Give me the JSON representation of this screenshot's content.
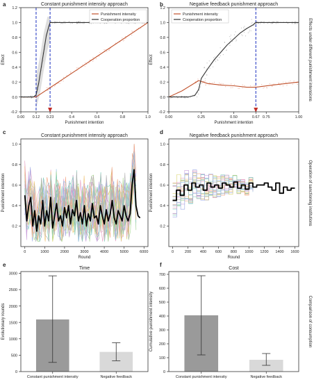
{
  "row_labels": [
    "Effects under different punishment intensions",
    "Operation of sanctioning institutions",
    "Comparison of consumption"
  ],
  "chart_data": [
    {
      "panel": "a",
      "type": "line",
      "title": "Constant punishment intensity approach",
      "xlabel": "Punishment intention",
      "ylabel": "Effect",
      "xlim": [
        0,
        1
      ],
      "ylim": [
        -0.2,
        1.2
      ],
      "xticks": [
        0.0,
        0.12,
        0.23,
        0.4,
        0.6,
        0.8,
        1.0
      ],
      "xtick_labels": [
        "0.00",
        "0.12",
        "0.23",
        "0.4",
        "0.6",
        "0.8",
        "1.0"
      ],
      "yticks": [
        -0.2,
        0.0,
        0.2,
        0.4,
        0.6,
        0.8,
        1.0,
        1.2
      ],
      "ytick_labels": [
        "-0.2",
        "0.0",
        "0.2",
        "0.4",
        "0.6",
        "0.8",
        "1.0",
        "1.2"
      ],
      "legend": "top-right",
      "vlines": [
        0.12,
        0.23
      ],
      "arrow_at": 0.23,
      "series": [
        {
          "name": "Punishment intensity",
          "color": "#c0502a",
          "x": [
            0.0,
            0.12,
            1.0
          ],
          "y": [
            0.0,
            0.0,
            1.0
          ]
        },
        {
          "name": "Cooperation proportion",
          "color": "#333333",
          "x": [
            0.0,
            0.1,
            0.12,
            0.14,
            0.17,
            0.2,
            0.22,
            0.23,
            0.25,
            1.0
          ],
          "y": [
            0.0,
            0.0,
            0.03,
            0.18,
            0.5,
            0.82,
            0.95,
            1.0,
            1.0,
            1.0
          ]
        }
      ]
    },
    {
      "panel": "b",
      "type": "line",
      "title": "Negative feedback punishment approach",
      "xlabel": "Punishment intention",
      "ylabel": "Effect",
      "xlim": [
        0,
        1
      ],
      "ylim": [
        -0.2,
        1.2
      ],
      "xticks": [
        0.0,
        0.25,
        0.5,
        0.67,
        0.75,
        1.0
      ],
      "xtick_labels": [
        "0.00",
        "0.25",
        "0.50",
        "0.67",
        "0.75",
        "1.00"
      ],
      "yticks": [
        -0.2,
        0.0,
        0.2,
        0.4,
        0.6,
        0.8,
        1.0,
        1.2
      ],
      "ytick_labels": [
        "-0.2",
        "0.0",
        "0.2",
        "0.4",
        "0.6",
        "0.8",
        "1.0",
        "1.2"
      ],
      "legend": "top-left",
      "vlines": [
        0.67
      ],
      "arrow_at": 0.67,
      "series": [
        {
          "name": "Punishment intensity",
          "color": "#c0502a",
          "x": [
            0.0,
            0.1,
            0.23,
            0.3,
            0.4,
            0.5,
            0.6,
            0.67,
            0.8,
            0.9,
            1.0
          ],
          "y": [
            0.0,
            0.08,
            0.22,
            0.18,
            0.16,
            0.15,
            0.13,
            0.13,
            0.16,
            0.18,
            0.2
          ]
        },
        {
          "name": "Cooperation proportion",
          "color": "#333333",
          "x": [
            0.0,
            0.15,
            0.2,
            0.23,
            0.25,
            0.3,
            0.35,
            0.4,
            0.45,
            0.5,
            0.55,
            0.6,
            0.65,
            0.67,
            0.7,
            0.8,
            0.9,
            1.0
          ],
          "y": [
            0.0,
            0.0,
            0.02,
            0.1,
            0.25,
            0.38,
            0.5,
            0.6,
            0.7,
            0.78,
            0.86,
            0.92,
            0.97,
            1.0,
            1.0,
            1.0,
            1.0,
            1.0
          ]
        }
      ]
    },
    {
      "panel": "c",
      "type": "line",
      "title": "Constant punishment intensity approach",
      "xlabel": "Round",
      "ylabel": "Punishment intention",
      "xlim": [
        -200,
        6200
      ],
      "ylim": [
        0,
        1.05
      ],
      "xticks": [
        0,
        1000,
        2000,
        3000,
        4000,
        5000,
        6000
      ],
      "xtick_labels": [
        "0",
        "1000",
        "2000",
        "3000",
        "4000",
        "5000",
        "6000"
      ],
      "yticks": [
        0.2,
        0.4,
        0.6,
        0.8,
        1.0
      ],
      "ytick_labels": [
        "0.2",
        "0.4",
        "0.6",
        "0.8",
        "1.0"
      ],
      "series": [
        {
          "color": "#000000",
          "x": [
            0,
            100,
            200,
            300,
            400,
            500,
            600,
            700,
            800,
            900,
            1000,
            1100,
            1200,
            1300,
            1400,
            1500,
            1600,
            1700,
            1800,
            1900,
            2000,
            2100,
            2200,
            2300,
            2400,
            2500,
            2600,
            2700,
            2800,
            2900,
            3000,
            3100,
            3200,
            3300,
            3400,
            3500,
            3600,
            3700,
            3800,
            3900,
            4000,
            4100,
            4200,
            4300,
            4400,
            4500,
            4600,
            4700,
            4800,
            4900,
            5000,
            5100,
            5200,
            5300,
            5400,
            5500,
            5600,
            5700,
            5800
          ],
          "y": [
            0.5,
            0.25,
            0.4,
            0.48,
            0.2,
            0.35,
            0.15,
            0.3,
            0.22,
            0.45,
            0.2,
            0.35,
            0.25,
            0.48,
            0.18,
            0.3,
            0.42,
            0.25,
            0.3,
            0.2,
            0.38,
            0.28,
            0.4,
            0.22,
            0.36,
            0.3,
            0.45,
            0.25,
            0.33,
            0.22,
            0.4,
            0.2,
            0.32,
            0.25,
            0.42,
            0.28,
            0.3,
            0.22,
            0.4,
            0.3,
            0.22,
            0.36,
            0.25,
            0.32,
            0.45,
            0.28,
            0.22,
            0.35,
            0.3,
            0.25,
            0.4,
            0.3,
            0.25,
            0.32,
            0.6,
            0.75,
            0.4,
            0.3,
            0.28
          ]
        }
      ]
    },
    {
      "panel": "d",
      "type": "line",
      "title": "Negative feedback punishment approach",
      "xlabel": "Round",
      "ylabel": "Punishment intention",
      "xlim": [
        -50,
        1650
      ],
      "ylim": [
        0,
        1.05
      ],
      "xticks": [
        0,
        200,
        400,
        600,
        800,
        1000,
        1200,
        1400,
        1600
      ],
      "xtick_labels": [
        "0",
        "200",
        "400",
        "600",
        "800",
        "1000",
        "1200",
        "1400",
        "1600"
      ],
      "yticks": [
        0.2,
        0.4,
        0.6,
        0.8,
        1.0
      ],
      "ytick_labels": [
        "0.2",
        "0.4",
        "0.6",
        "0.8",
        "1.0"
      ],
      "series": [
        {
          "color": "#000000",
          "x": [
            0,
            50,
            100,
            150,
            200,
            250,
            300,
            350,
            400,
            450,
            500,
            550,
            600,
            650,
            700,
            750,
            800,
            850,
            900,
            950,
            1000,
            1050,
            1100,
            1150,
            1200,
            1250,
            1300,
            1350,
            1400,
            1450,
            1500,
            1550,
            1600
          ],
          "y": [
            0.45,
            0.55,
            0.5,
            0.6,
            0.55,
            0.62,
            0.58,
            0.6,
            0.55,
            0.62,
            0.58,
            0.6,
            0.57,
            0.62,
            0.6,
            0.58,
            0.63,
            0.57,
            0.6,
            0.56,
            0.62,
            0.58,
            0.6,
            0.6,
            0.62,
            0.58,
            0.55,
            0.62,
            0.52,
            0.58,
            0.55,
            0.57,
            0.57
          ]
        }
      ]
    },
    {
      "panel": "e",
      "type": "bar",
      "title": "Time",
      "xlabel": "",
      "ylabel": "Evolutionary rounds",
      "ylim": [
        0,
        3050
      ],
      "yticks": [
        0,
        500,
        1000,
        1500,
        2000,
        2500,
        3000
      ],
      "ytick_labels": [
        "0",
        "500",
        "1000",
        "1500",
        "2000",
        "2500",
        "3000"
      ],
      "categories": [
        "Constant punishment intensity",
        "Negative feedback"
      ],
      "values": [
        1590,
        600
      ],
      "error_low": [
        280,
        330
      ],
      "error_high": [
        2920,
        880
      ],
      "colors": [
        "#9a9a9a",
        "#d9d9d9"
      ]
    },
    {
      "panel": "f",
      "type": "bar",
      "title": "Cost",
      "xlabel": "",
      "ylabel": "Cumulative punishment intensity",
      "ylim": [
        0,
        720
      ],
      "yticks": [
        0,
        100,
        200,
        300,
        400,
        500,
        600,
        700
      ],
      "ytick_labels": [
        "0",
        "100",
        "200",
        "300",
        "400",
        "500",
        "600",
        "700"
      ],
      "categories": [
        "Constant punishment intensity",
        "Negative feedback"
      ],
      "values": [
        405,
        85
      ],
      "error_low": [
        120,
        45
      ],
      "error_high": [
        690,
        130
      ],
      "colors": [
        "#9a9a9a",
        "#d9d9d9"
      ]
    }
  ]
}
